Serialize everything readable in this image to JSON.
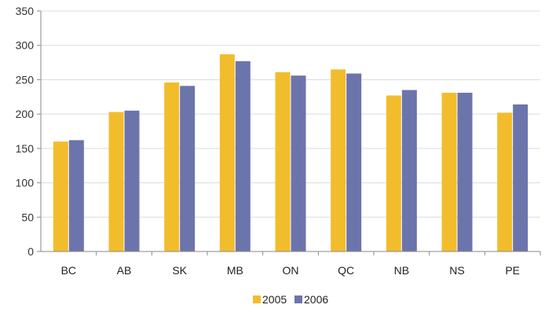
{
  "chart_data": {
    "type": "bar",
    "title": "",
    "xlabel": "",
    "ylabel": "",
    "categories": [
      "BC",
      "AB",
      "SK",
      "MB",
      "ON",
      "QC",
      "NB",
      "NS",
      "PE"
    ],
    "series": [
      {
        "name": "2005",
        "color": "#f2bd2c",
        "values": [
          160,
          203,
          246,
          287,
          261,
          265,
          227,
          231,
          202
        ]
      },
      {
        "name": "2006",
        "color": "#6c74ac",
        "values": [
          162,
          205,
          241,
          277,
          256,
          259,
          235,
          231,
          214
        ]
      }
    ],
    "ylim": [
      0,
      350
    ],
    "yticks": [
      0,
      50,
      100,
      150,
      200,
      250,
      300,
      350
    ],
    "grid": true,
    "legend_position": "bottom-center"
  }
}
